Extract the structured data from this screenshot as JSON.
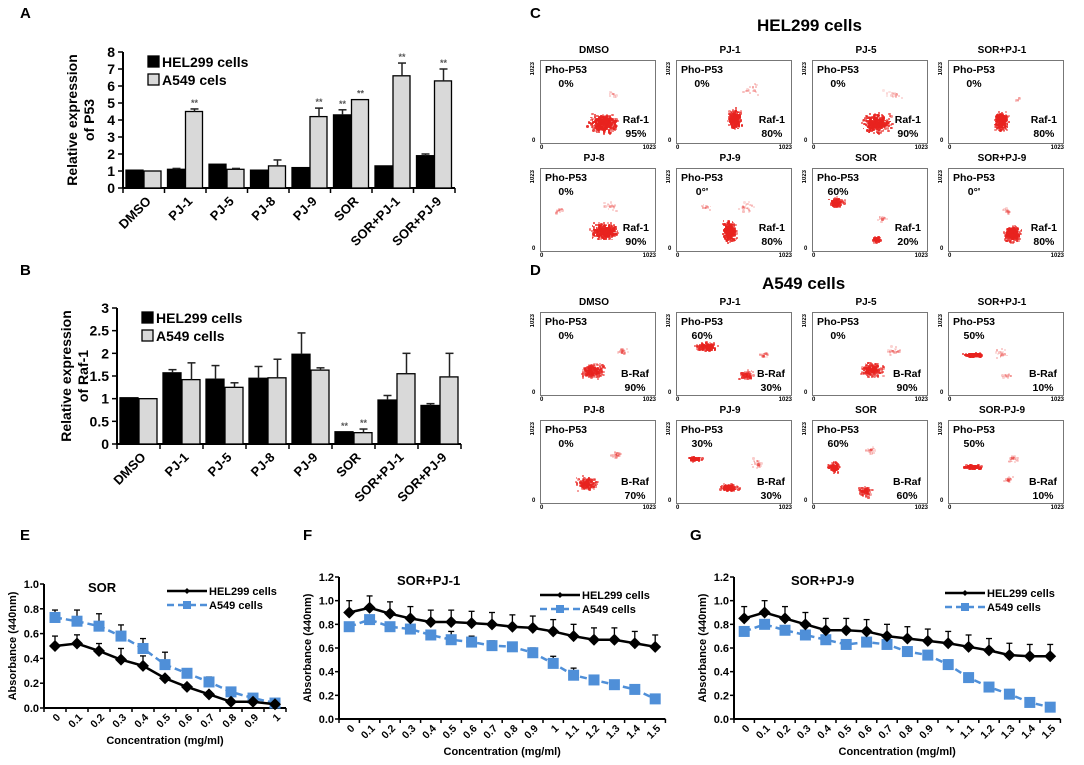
{
  "panels": {
    "A": "A",
    "B": "B",
    "C": "C",
    "D": "D",
    "E": "E",
    "F": "F",
    "G": "G"
  },
  "colors": {
    "hel_bar": "#000000",
    "a549_bar": "#d9d9d9",
    "hel_line": "#000000",
    "a549_line": "#4f8fd8",
    "flow_dot": "#e8231f"
  },
  "chart_data": [
    {
      "id": "A",
      "type": "bar",
      "ylabel": "Relative expression of P53",
      "ylabel_lines": [
        "Relative expression",
        "of P53"
      ],
      "ylim": [
        0,
        8
      ],
      "yticks": [
        "0",
        "1",
        "2",
        "3",
        "4",
        "5",
        "6",
        "7",
        "8"
      ],
      "categories": [
        "DMSO",
        "PJ-1",
        "PJ-5",
        "PJ-8",
        "PJ-9",
        "SOR",
        "SOR+PJ-1",
        "SOR+PJ-9"
      ],
      "series": [
        {
          "name": "HEL299 cells",
          "values": [
            1.05,
            1.1,
            1.4,
            1.05,
            1.2,
            4.3,
            1.3,
            1.9
          ],
          "errors": [
            0,
            0.05,
            0,
            0,
            0,
            0.3,
            0,
            0.1
          ],
          "sig": [
            "",
            "",
            "",
            "",
            "",
            "**",
            "",
            ""
          ]
        },
        {
          "name": "A549 cels",
          "values": [
            1.0,
            4.5,
            1.1,
            1.3,
            4.2,
            5.2,
            6.6,
            6.3
          ],
          "errors": [
            0,
            0.15,
            0.05,
            0.35,
            0.5,
            0,
            0.75,
            0.7
          ],
          "sig": [
            "",
            "**",
            "",
            "",
            "**",
            "**",
            "**",
            "**"
          ]
        }
      ],
      "legend": [
        "HEL299 cells",
        "A549 cels"
      ],
      "legend_position": "top-left"
    },
    {
      "id": "B",
      "type": "bar",
      "ylabel": "Relative expression of Raf-1",
      "ylabel_lines": [
        "Relative expression",
        "of Raf-1"
      ],
      "ylim": [
        0,
        3
      ],
      "yticks": [
        "0",
        "0.5",
        "1",
        "1.5",
        "2",
        "2.5",
        "3"
      ],
      "categories": [
        "DMSO",
        "PJ-1",
        "PJ-5",
        "PJ-8",
        "PJ-9",
        "SOR",
        "SOR+PJ-1",
        "SOR+PJ-9"
      ],
      "series": [
        {
          "name": "HEL299 cells",
          "values": [
            1.02,
            1.57,
            1.43,
            1.45,
            1.98,
            0.27,
            0.97,
            0.85
          ],
          "errors": [
            0,
            0.07,
            0.3,
            0.26,
            0.47,
            0,
            0.1,
            0.04
          ],
          "sig": [
            "",
            "",
            "",
            "",
            "",
            "**",
            "",
            ""
          ]
        },
        {
          "name": "A549 cells",
          "values": [
            1.0,
            1.42,
            1.25,
            1.46,
            1.63,
            0.25,
            1.55,
            1.48
          ],
          "errors": [
            0,
            0.37,
            0.1,
            0.41,
            0.05,
            0.08,
            0.45,
            0.52
          ],
          "sig": [
            "",
            "",
            "",
            "",
            "",
            "**",
            "",
            ""
          ]
        }
      ],
      "legend": [
        "HEL299 cells",
        "A549 cells"
      ],
      "legend_position": "top-left"
    },
    {
      "id": "E",
      "type": "line",
      "title": "SOR",
      "xlabel": "Concentration (mg/ml)",
      "ylabel": "Absorbance (440nm)",
      "ylim": [
        0,
        1.0
      ],
      "yticks": [
        "0.0",
        "0.2",
        "0.4",
        "0.6",
        "0.8",
        "1.0"
      ],
      "x": [
        "0",
        "0.1",
        "0.2",
        "0.3",
        "0.4",
        "0.5",
        "0.6",
        "0.7",
        "0.8",
        "0.9",
        "1"
      ],
      "series": [
        {
          "name": "HEL299 cells",
          "values": [
            0.5,
            0.52,
            0.46,
            0.39,
            0.34,
            0.24,
            0.17,
            0.11,
            0.05,
            0.05,
            0.03
          ],
          "errors": [
            0.08,
            0.07,
            0.06,
            0.09,
            0.08,
            0.02,
            0.02,
            0.02,
            0.01,
            0.01,
            0.01
          ]
        },
        {
          "name": "A549 cells",
          "values": [
            0.73,
            0.7,
            0.66,
            0.58,
            0.48,
            0.35,
            0.28,
            0.21,
            0.13,
            0.08,
            0.04
          ],
          "errors": [
            0.06,
            0.09,
            0.1,
            0.09,
            0.08,
            0.1,
            0.02,
            0.04,
            0.02,
            0.01,
            0.01
          ]
        }
      ],
      "legend_position": "top-right"
    },
    {
      "id": "F",
      "type": "line",
      "title": "SOR+PJ-1",
      "xlabel": "Concentration (mg/ml)",
      "ylabel": "Absorbance (440nm)",
      "ylim": [
        0,
        1.2
      ],
      "yticks": [
        "0.0",
        "0.2",
        "0.4",
        "0.6",
        "0.8",
        "1.0",
        "1.2"
      ],
      "x": [
        "0",
        "0.1",
        "0.2",
        "0.3",
        "0.4",
        "0.5",
        "0.6",
        "0.7",
        "0.8",
        "0.9",
        "1",
        "1.1",
        "1.2",
        "1.3",
        "1.4",
        "1.5"
      ],
      "series": [
        {
          "name": "HEL299 cells",
          "values": [
            0.9,
            0.94,
            0.89,
            0.85,
            0.82,
            0.82,
            0.81,
            0.8,
            0.78,
            0.77,
            0.74,
            0.7,
            0.67,
            0.67,
            0.64,
            0.61
          ],
          "errors": [
            0.1,
            0.1,
            0.1,
            0.1,
            0.1,
            0.1,
            0.1,
            0.1,
            0.1,
            0.1,
            0.1,
            0.1,
            0.1,
            0.1,
            0.1,
            0.1
          ]
        },
        {
          "name": "A549 cells",
          "values": [
            0.78,
            0.84,
            0.78,
            0.76,
            0.71,
            0.67,
            0.65,
            0.62,
            0.61,
            0.56,
            0.47,
            0.37,
            0.33,
            0.29,
            0.25,
            0.17
          ],
          "errors": [
            0.03,
            0.02,
            0.02,
            0.02,
            0.02,
            0.07,
            0.05,
            0.04,
            0.02,
            0.04,
            0.06,
            0.06,
            0.04,
            0.03,
            0.02,
            0.02
          ]
        }
      ],
      "legend_position": "top-right"
    },
    {
      "id": "G",
      "type": "line",
      "title": "SOR+PJ-9",
      "xlabel": "Concentration (mg/ml)",
      "ylabel": "Absorbance (440nm)",
      "ylim": [
        0,
        1.2
      ],
      "yticks": [
        "0.0",
        "0.2",
        "0.4",
        "0.6",
        "0.8",
        "1.0",
        "1.2"
      ],
      "x": [
        "0",
        "0.1",
        "0.2",
        "0.3",
        "0.4",
        "0.5",
        "0.6",
        "0.7",
        "0.8",
        "0.9",
        "1",
        "1.1",
        "1.2",
        "1.3",
        "1.4",
        "1.5"
      ],
      "series": [
        {
          "name": "HEL299 cells",
          "values": [
            0.85,
            0.9,
            0.85,
            0.8,
            0.75,
            0.75,
            0.74,
            0.7,
            0.68,
            0.66,
            0.64,
            0.61,
            0.58,
            0.54,
            0.53,
            0.53
          ],
          "errors": [
            0.1,
            0.1,
            0.1,
            0.1,
            0.1,
            0.1,
            0.1,
            0.1,
            0.1,
            0.1,
            0.1,
            0.1,
            0.1,
            0.1,
            0.1,
            0.1
          ]
        },
        {
          "name": "A549 cells",
          "values": [
            0.74,
            0.8,
            0.75,
            0.71,
            0.67,
            0.63,
            0.65,
            0.63,
            0.57,
            0.54,
            0.46,
            0.35,
            0.27,
            0.21,
            0.14,
            0.1
          ],
          "errors": [
            0.02,
            0.02,
            0.02,
            0.02,
            0.02,
            0.02,
            0.02,
            0.02,
            0.02,
            0.02,
            0.02,
            0.02,
            0.02,
            0.02,
            0.02,
            0.02
          ]
        }
      ],
      "legend_position": "top-right"
    }
  ],
  "flow": {
    "C": {
      "title": "HEL299 cells",
      "upper_label": "Pho-P53",
      "lower_label": "Raf-1",
      "axis_max": "1023",
      "axis_min": "0",
      "plots": [
        {
          "name": "DMSO",
          "upper": "0%",
          "lower": "95%"
        },
        {
          "name": "PJ-1",
          "upper": "0%",
          "lower": "80%"
        },
        {
          "name": "PJ-5",
          "upper": "0%",
          "lower": "90%"
        },
        {
          "name": "SOR+PJ-1",
          "upper": "0%",
          "lower": "80%"
        },
        {
          "name": "PJ-8",
          "upper": "0%",
          "lower": "90%"
        },
        {
          "name": "PJ-9",
          "upper": "0°'",
          "lower": "80%"
        },
        {
          "name": "SOR",
          "upper": "60%",
          "lower": "20%"
        },
        {
          "name": "SOR+PJ-9",
          "upper": "0°'",
          "lower": "80%"
        }
      ]
    },
    "D": {
      "title": "A549 cells",
      "upper_label": "Pho-P53",
      "lower_label": "B-Raf",
      "axis_max": "1023",
      "axis_min": "0",
      "plots": [
        {
          "name": "DMSO",
          "upper": "0%",
          "lower": "90%"
        },
        {
          "name": "PJ-1",
          "upper": "60%",
          "lower": "30%"
        },
        {
          "name": "PJ-5",
          "upper": "0%",
          "lower": "90%"
        },
        {
          "name": "SOR+PJ-1",
          "upper": "50%",
          "lower": "10%"
        },
        {
          "name": "PJ-8",
          "upper": "0%",
          "lower": "70%"
        },
        {
          "name": "PJ-9",
          "upper": "30%",
          "lower": "30%"
        },
        {
          "name": "SOR",
          "upper": "60%",
          "lower": "60%"
        },
        {
          "name": "SOR-PJ-9",
          "upper": "50%",
          "lower": "10%"
        }
      ]
    }
  }
}
